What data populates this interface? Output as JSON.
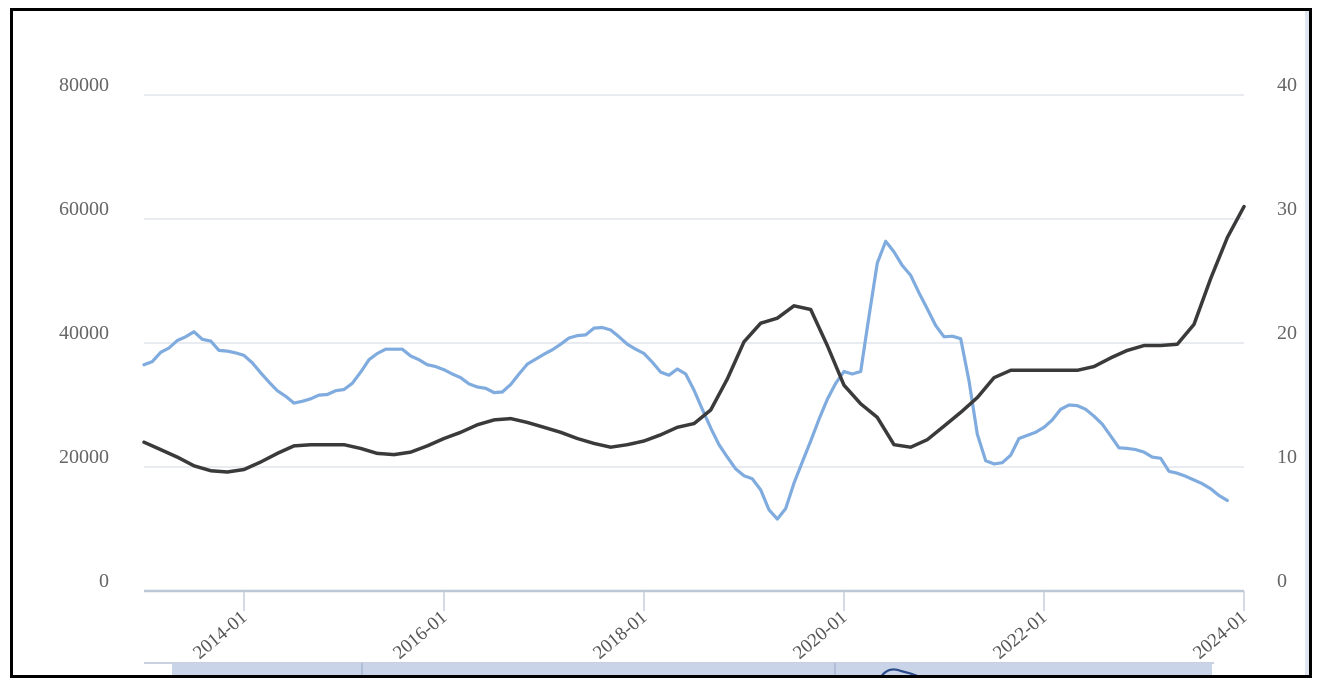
{
  "chart_data": {
    "type": "line",
    "title": "",
    "xlabel": "",
    "ylabel_left": "",
    "ylabel_right": "",
    "x_tick_labels": [
      "2014-01",
      "2016-01",
      "2018-01",
      "2020-01",
      "2022-01",
      "2024-01"
    ],
    "ylim_left": [
      0,
      80000
    ],
    "yticks_left": [
      "0",
      "20000",
      "40000",
      "60000",
      "80000"
    ],
    "ylim_right": [
      0,
      40
    ],
    "yticks_right": [
      "0",
      "10",
      "20",
      "30",
      "40"
    ],
    "grid": true,
    "legend": "none",
    "series": [
      {
        "axis": "left",
        "color": "#7fabde",
        "points": [
          [
            "2013-01",
            36500
          ],
          [
            "2013-02",
            37000
          ],
          [
            "2013-03",
            38500
          ],
          [
            "2013-04",
            39200
          ],
          [
            "2013-05",
            40400
          ],
          [
            "2013-06",
            41000
          ],
          [
            "2013-07",
            41800
          ],
          [
            "2013-08",
            40600
          ],
          [
            "2013-09",
            40300
          ],
          [
            "2013-10",
            38800
          ],
          [
            "2013-11",
            38700
          ],
          [
            "2013-12",
            38400
          ],
          [
            "2014-01",
            38000
          ],
          [
            "2014-02",
            36800
          ],
          [
            "2014-03",
            35200
          ],
          [
            "2014-04",
            33700
          ],
          [
            "2014-05",
            32300
          ],
          [
            "2014-06",
            31400
          ],
          [
            "2014-07",
            30300
          ],
          [
            "2014-08",
            30600
          ],
          [
            "2014-09",
            31000
          ],
          [
            "2014-10",
            31600
          ],
          [
            "2014-11",
            31700
          ],
          [
            "2014-12",
            32300
          ],
          [
            "2015-01",
            32500
          ],
          [
            "2015-02",
            33500
          ],
          [
            "2015-03",
            35300
          ],
          [
            "2015-04",
            37300
          ],
          [
            "2015-05",
            38300
          ],
          [
            "2015-06",
            39000
          ],
          [
            "2015-07",
            39000
          ],
          [
            "2015-08",
            39000
          ],
          [
            "2015-09",
            37900
          ],
          [
            "2015-10",
            37300
          ],
          [
            "2015-11",
            36500
          ],
          [
            "2015-12",
            36200
          ],
          [
            "2016-01",
            35700
          ],
          [
            "2016-02",
            35000
          ],
          [
            "2016-03",
            34400
          ],
          [
            "2016-04",
            33400
          ],
          [
            "2016-05",
            32900
          ],
          [
            "2016-06",
            32700
          ],
          [
            "2016-07",
            32000
          ],
          [
            "2016-08",
            32100
          ],
          [
            "2016-09",
            33300
          ],
          [
            "2016-10",
            35000
          ],
          [
            "2016-11",
            36600
          ],
          [
            "2016-12",
            37400
          ],
          [
            "2017-01",
            38200
          ],
          [
            "2017-02",
            38900
          ],
          [
            "2017-03",
            39800
          ],
          [
            "2017-04",
            40800
          ],
          [
            "2017-05",
            41200
          ],
          [
            "2017-06",
            41300
          ],
          [
            "2017-07",
            42400
          ],
          [
            "2017-08",
            42500
          ],
          [
            "2017-09",
            42100
          ],
          [
            "2017-10",
            41000
          ],
          [
            "2017-11",
            39800
          ],
          [
            "2017-12",
            39000
          ],
          [
            "2018-01",
            38300
          ],
          [
            "2018-02",
            36900
          ],
          [
            "2018-03",
            35300
          ],
          [
            "2018-04",
            34800
          ],
          [
            "2018-05",
            35800
          ],
          [
            "2018-06",
            35000
          ],
          [
            "2018-07",
            32400
          ],
          [
            "2018-08",
            29300
          ],
          [
            "2018-09",
            26300
          ],
          [
            "2018-10",
            23600
          ],
          [
            "2018-11",
            21600
          ],
          [
            "2018-12",
            19700
          ],
          [
            "2019-01",
            18600
          ],
          [
            "2019-02",
            18100
          ],
          [
            "2019-03",
            16300
          ],
          [
            "2019-04",
            13100
          ],
          [
            "2019-05",
            11600
          ],
          [
            "2019-06",
            13300
          ],
          [
            "2019-07",
            17400
          ],
          [
            "2019-08",
            20800
          ],
          [
            "2019-09",
            24200
          ],
          [
            "2019-10",
            27700
          ],
          [
            "2019-11",
            30900
          ],
          [
            "2019-12",
            33500
          ],
          [
            "2020-01",
            35400
          ],
          [
            "2020-02",
            35000
          ],
          [
            "2020-03",
            35400
          ],
          [
            "2020-04",
            44300
          ],
          [
            "2020-05",
            52900
          ],
          [
            "2020-06",
            56400
          ],
          [
            "2020-07",
            54700
          ],
          [
            "2020-08",
            52500
          ],
          [
            "2020-09",
            50900
          ],
          [
            "2020-10",
            48100
          ],
          [
            "2020-11",
            45500
          ],
          [
            "2020-12",
            42800
          ],
          [
            "2021-01",
            41000
          ],
          [
            "2021-02",
            41100
          ],
          [
            "2021-03",
            40700
          ],
          [
            "2021-04",
            33900
          ],
          [
            "2021-05",
            25300
          ],
          [
            "2021-06",
            21000
          ],
          [
            "2021-07",
            20500
          ],
          [
            "2021-08",
            20700
          ],
          [
            "2021-09",
            21900
          ],
          [
            "2021-10",
            24600
          ],
          [
            "2021-11",
            25100
          ],
          [
            "2021-12",
            25600
          ],
          [
            "2022-01",
            26400
          ],
          [
            "2022-02",
            27600
          ],
          [
            "2022-03",
            29300
          ],
          [
            "2022-04",
            30000
          ],
          [
            "2022-05",
            29900
          ],
          [
            "2022-06",
            29300
          ],
          [
            "2022-07",
            28200
          ],
          [
            "2022-08",
            26900
          ],
          [
            "2022-09",
            25000
          ],
          [
            "2022-10",
            23100
          ],
          [
            "2022-11",
            23000
          ],
          [
            "2022-12",
            22800
          ],
          [
            "2023-01",
            22400
          ],
          [
            "2023-02",
            21600
          ],
          [
            "2023-03",
            21400
          ],
          [
            "2023-04",
            19300
          ],
          [
            "2023-05",
            19000
          ],
          [
            "2023-06",
            18500
          ],
          [
            "2023-07",
            17900
          ],
          [
            "2023-08",
            17300
          ],
          [
            "2023-09",
            16500
          ],
          [
            "2023-10",
            15400
          ],
          [
            "2023-11",
            14600
          ]
        ]
      },
      {
        "axis": "right",
        "color": "#3a3a3a",
        "points": [
          [
            "2013-01",
            12.0
          ],
          [
            "2013-03",
            11.4
          ],
          [
            "2013-05",
            10.8
          ],
          [
            "2013-07",
            10.1
          ],
          [
            "2013-09",
            9.7
          ],
          [
            "2013-11",
            9.6
          ],
          [
            "2014-01",
            9.8
          ],
          [
            "2014-03",
            10.4
          ],
          [
            "2014-05",
            11.1
          ],
          [
            "2014-07",
            11.7
          ],
          [
            "2014-09",
            11.8
          ],
          [
            "2014-11",
            11.8
          ],
          [
            "2015-01",
            11.8
          ],
          [
            "2015-03",
            11.5
          ],
          [
            "2015-05",
            11.1
          ],
          [
            "2015-07",
            11.0
          ],
          [
            "2015-09",
            11.2
          ],
          [
            "2015-11",
            11.7
          ],
          [
            "2016-01",
            12.3
          ],
          [
            "2016-03",
            12.8
          ],
          [
            "2016-05",
            13.4
          ],
          [
            "2016-07",
            13.8
          ],
          [
            "2016-09",
            13.9
          ],
          [
            "2016-11",
            13.6
          ],
          [
            "2017-01",
            13.2
          ],
          [
            "2017-03",
            12.8
          ],
          [
            "2017-05",
            12.3
          ],
          [
            "2017-07",
            11.9
          ],
          [
            "2017-09",
            11.6
          ],
          [
            "2017-11",
            11.8
          ],
          [
            "2018-01",
            12.1
          ],
          [
            "2018-03",
            12.6
          ],
          [
            "2018-05",
            13.2
          ],
          [
            "2018-07",
            13.5
          ],
          [
            "2018-09",
            14.6
          ],
          [
            "2018-11",
            17.1
          ],
          [
            "2019-01",
            20.1
          ],
          [
            "2019-03",
            21.6
          ],
          [
            "2019-05",
            22.0
          ],
          [
            "2019-07",
            23.0
          ],
          [
            "2019-09",
            22.7
          ],
          [
            "2019-11",
            19.8
          ],
          [
            "2020-01",
            16.6
          ],
          [
            "2020-03",
            15.1
          ],
          [
            "2020-05",
            14.0
          ],
          [
            "2020-07",
            11.8
          ],
          [
            "2020-09",
            11.6
          ],
          [
            "2020-11",
            12.2
          ],
          [
            "2021-01",
            13.3
          ],
          [
            "2021-03",
            14.4
          ],
          [
            "2021-05",
            15.6
          ],
          [
            "2021-07",
            17.2
          ],
          [
            "2021-09",
            17.8
          ],
          [
            "2021-11",
            17.8
          ],
          [
            "2022-01",
            17.8
          ],
          [
            "2022-03",
            17.8
          ],
          [
            "2022-05",
            17.8
          ],
          [
            "2022-07",
            18.1
          ],
          [
            "2022-09",
            18.8
          ],
          [
            "2022-11",
            19.4
          ],
          [
            "2023-01",
            19.8
          ],
          [
            "2023-03",
            19.8
          ],
          [
            "2023-05",
            19.9
          ],
          [
            "2023-07",
            21.5
          ],
          [
            "2023-09",
            25.2
          ],
          [
            "2023-11",
            28.5
          ],
          [
            "2024-01",
            31.0
          ]
        ]
      }
    ]
  },
  "navigator": {
    "fill": "#c9d4e9",
    "line_color": "#2b4c8a",
    "divider_color": "#9fb0cf"
  }
}
